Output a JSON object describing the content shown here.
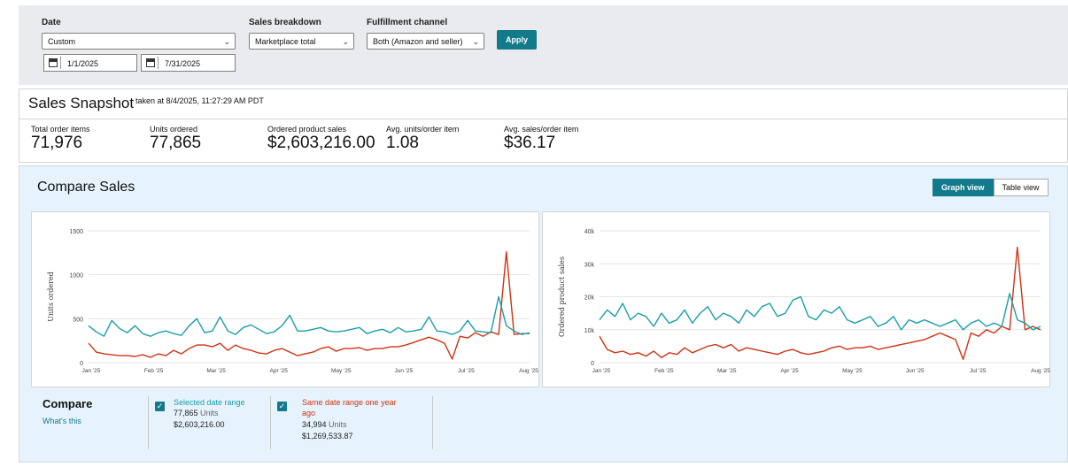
{
  "filters": {
    "date_label": "Date",
    "date_value": "Custom",
    "start_date": "1/1/2025",
    "end_date": "7/31/2025",
    "breakdown_label": "Sales breakdown",
    "breakdown_value": "Marketplace total",
    "channel_label": "Fulfillment channel",
    "channel_value": "Both (Amazon and seller)",
    "apply_label": "Apply"
  },
  "snapshot": {
    "title": "Sales Snapshot",
    "taken": "taken at 8/4/2025, 11:27:29 AM PDT",
    "metrics": [
      {
        "label": "Total order items",
        "value": "71,976"
      },
      {
        "label": "Units ordered",
        "value": "77,865"
      },
      {
        "label": "Ordered product sales",
        "value": "$2,603,216.00"
      },
      {
        "label": "Avg. units/order item",
        "value": "1.08"
      },
      {
        "label": "Avg. sales/order item",
        "value": "$36.17"
      }
    ]
  },
  "compare": {
    "title": "Compare Sales",
    "graph_view": "Graph view",
    "table_view": "Table view",
    "legend_title": "Compare",
    "whats_this": "What's this",
    "series": [
      {
        "name": "Selected date range",
        "units_value": "77,865",
        "units_word": "Units",
        "sales": "$2,603,216.00",
        "color": "#1a9fa8"
      },
      {
        "name": "Same date range one year ago",
        "units_value": "34,994",
        "units_word": "Units",
        "sales": "$1,269,533.87",
        "color": "#d13212"
      }
    ]
  },
  "colors": {
    "accent": "#137a8b",
    "current": "#1a9fa8",
    "previous": "#d13212"
  },
  "chart_data": [
    {
      "type": "line",
      "ylabel": "Units ordered",
      "ylim": [
        0,
        1500
      ],
      "yticks": [
        "0",
        "500",
        "1000",
        "1500"
      ],
      "xticks": [
        "Jan '25",
        "Feb '25",
        "Mar '25",
        "Apr '25",
        "May '25",
        "Jun '25",
        "Jul '25",
        "Aug '25"
      ],
      "series": [
        {
          "name": "Selected date range",
          "color": "#1a9fa8",
          "values": [
            420,
            350,
            300,
            480,
            390,
            340,
            420,
            330,
            300,
            340,
            360,
            330,
            310,
            420,
            500,
            340,
            360,
            520,
            360,
            320,
            400,
            430,
            380,
            330,
            350,
            420,
            540,
            360,
            360,
            380,
            400,
            360,
            350,
            360,
            380,
            400,
            330,
            360,
            380,
            340,
            400,
            350,
            360,
            380,
            520,
            360,
            350,
            320,
            360,
            480,
            360,
            350,
            340,
            750,
            420,
            360,
            320,
            340
          ]
        },
        {
          "name": "Same date range one year ago",
          "color": "#d13212",
          "values": [
            220,
            120,
            100,
            90,
            80,
            80,
            70,
            90,
            60,
            100,
            80,
            140,
            100,
            160,
            200,
            200,
            180,
            220,
            140,
            200,
            160,
            140,
            110,
            100,
            140,
            160,
            120,
            80,
            100,
            120,
            160,
            180,
            130,
            160,
            160,
            170,
            140,
            160,
            160,
            180,
            180,
            200,
            230,
            260,
            290,
            260,
            220,
            40,
            300,
            280,
            340,
            300,
            350,
            320,
            1260,
            320,
            330,
            330
          ]
        }
      ]
    },
    {
      "type": "line",
      "ylabel": "Ordered product sales",
      "ylim": [
        0,
        40000
      ],
      "yticks": [
        "0",
        "10k",
        "20k",
        "30k",
        "40k"
      ],
      "xticks": [
        "Jan '25",
        "Feb '25",
        "Mar '25",
        "Apr '25",
        "May '25",
        "Jun '25",
        "Jul '25",
        "Aug '25"
      ],
      "series": [
        {
          "name": "Selected date range",
          "color": "#1a9fa8",
          "values": [
            13000,
            16000,
            14000,
            18000,
            13000,
            15000,
            14000,
            11000,
            15000,
            12000,
            13000,
            16000,
            12000,
            15000,
            17000,
            13000,
            15000,
            14000,
            12000,
            16000,
            14000,
            17000,
            18000,
            14000,
            15000,
            19000,
            20000,
            14000,
            13000,
            16000,
            15000,
            17000,
            13000,
            12000,
            13000,
            14000,
            11000,
            12000,
            14000,
            10000,
            13000,
            12000,
            13000,
            12000,
            11000,
            12000,
            13000,
            10000,
            12000,
            13000,
            11000,
            12000,
            11000,
            21000,
            13000,
            12000,
            10000,
            11000
          ]
        },
        {
          "name": "Same date range one year ago",
          "color": "#d13212",
          "values": [
            8000,
            4000,
            3000,
            3500,
            2500,
            3000,
            2000,
            3500,
            1500,
            3000,
            2500,
            4500,
            3000,
            4000,
            5000,
            5500,
            4500,
            5500,
            3500,
            4500,
            4000,
            3500,
            3000,
            2500,
            3500,
            4000,
            3000,
            2500,
            3000,
            3500,
            4500,
            5000,
            4000,
            4500,
            4500,
            5000,
            4000,
            4500,
            5000,
            5500,
            6000,
            6500,
            7000,
            8000,
            9000,
            8000,
            7000,
            1000,
            9000,
            8000,
            10000,
            9000,
            11000,
            10000,
            35000,
            10000,
            11000,
            10000
          ]
        }
      ]
    }
  ]
}
